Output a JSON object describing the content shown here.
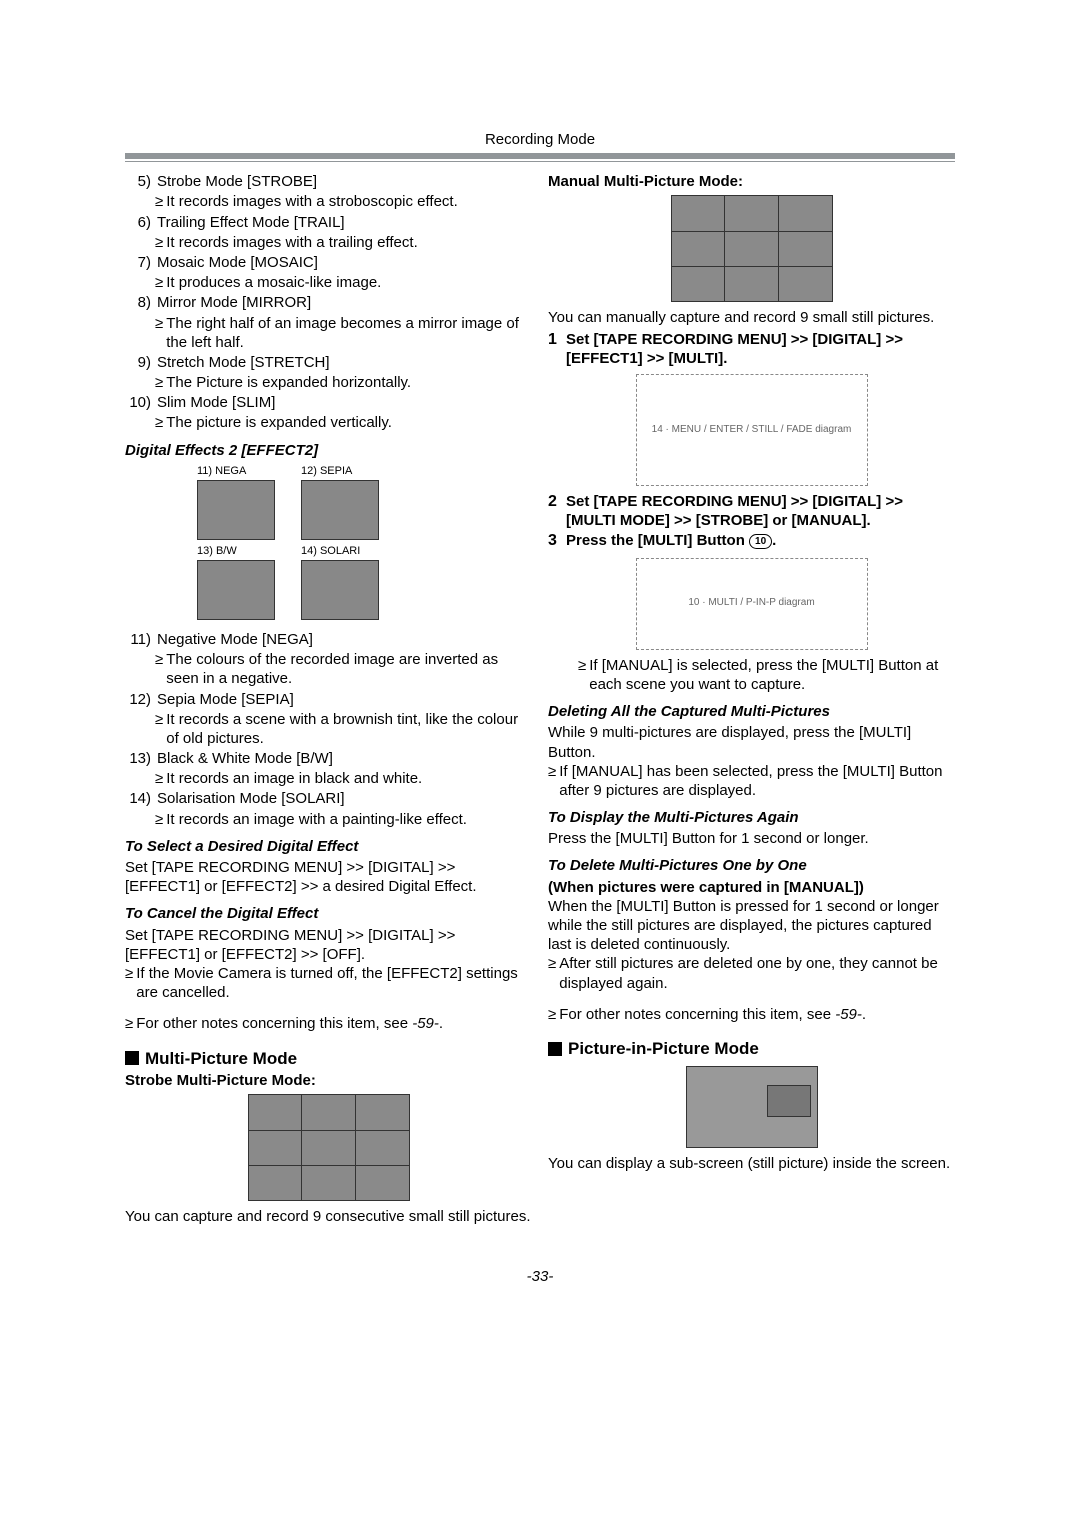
{
  "header": "Recording Mode",
  "left": {
    "effects1": [
      {
        "n": "5)",
        "title": "Strobe Mode [STROBE]",
        "desc": "It records images with a stroboscopic effect."
      },
      {
        "n": "6)",
        "title": "Trailing Effect Mode [TRAIL]",
        "desc": "It records images with a trailing effect."
      },
      {
        "n": "7)",
        "title": "Mosaic Mode [MOSAIC]",
        "desc": "It produces a mosaic-like image."
      },
      {
        "n": "8)",
        "title": "Mirror Mode [MIRROR]",
        "desc": "The right half of an image becomes a mirror image of the left half."
      },
      {
        "n": "9)",
        "title": "Stretch Mode [STRETCH]",
        "desc": "The Picture is expanded horizontally."
      },
      {
        "n": "10)",
        "title": "Slim Mode [SLIM]",
        "desc": "The picture is expanded vertically."
      }
    ],
    "effects2_heading": "Digital Effects 2 [EFFECT2]",
    "effects2_thumbs": [
      {
        "cap": "11) NEGA"
      },
      {
        "cap": "12) SEPIA"
      },
      {
        "cap": "13) B/W"
      },
      {
        "cap": "14) SOLARI"
      }
    ],
    "effects2": [
      {
        "n": "11)",
        "title": "Negative Mode [NEGA]",
        "desc": "The colours of the recorded image are inverted as seen in a negative."
      },
      {
        "n": "12)",
        "title": "Sepia Mode [SEPIA]",
        "desc": "It records a scene with a brownish tint, like the colour of old pictures."
      },
      {
        "n": "13)",
        "title": "Black & White Mode [B/W]",
        "desc": "It records an image in black and white."
      },
      {
        "n": "14)",
        "title": "Solarisation Mode [SOLARI]",
        "desc": "It records an image with a painting-like effect."
      }
    ],
    "select_heading": "To Select a Desired Digital Effect",
    "select_body": "Set [TAPE RECORDING MENU] >> [DIGITAL] >> [EFFECT1] or [EFFECT2] >> a desired Digital Effect.",
    "cancel_heading": "To Cancel the Digital Effect",
    "cancel_body": "Set [TAPE RECORDING MENU] >> [DIGITAL] >> [EFFECT1] or [EFFECT2] >> [OFF].",
    "cancel_bullet": "If the Movie Camera is turned off, the [EFFECT2] settings are cancelled.",
    "notes_ref_pre": "For other notes concerning this item, see ",
    "notes_ref_page": "-59-",
    "notes_ref_post": ".",
    "multi_heading": "Multi-Picture Mode",
    "strobe_multi_heading": "Strobe Multi-Picture Mode:",
    "strobe_multi_body": "You can capture and record 9 consecutive small still pictures."
  },
  "right": {
    "manual_heading": "Manual Multi-Picture Mode:",
    "manual_body": "You can manually capture and record 9 small still pictures.",
    "step1_n": "1",
    "step1_t": "Set [TAPE RECORDING MENU] >> [DIGITAL] >> [EFFECT1] >> [MULTI].",
    "step2_n": "2",
    "step2_t": "Set [TAPE RECORDING MENU] >> [DIGITAL] >> [MULTI MODE] >> [STROBE] or [MANUAL].",
    "step3_n": "3",
    "step3_pre": "Press the [MULTI] Button ",
    "step3_btn": "10",
    "step3_post": ".",
    "manual_bullet": "If [MANUAL] is selected, press the [MULTI] Button at each scene you want to capture.",
    "del_all_heading": "Deleting All the Captured Multi-Pictures",
    "del_all_body": "While 9 multi-pictures are displayed, press the [MULTI] Button.",
    "del_all_bullet": "If [MANUAL] has been selected, press the [MULTI] Button after 9 pictures are displayed.",
    "redisplay_heading": "To Display the Multi-Pictures Again",
    "redisplay_body": "Press the [MULTI] Button for 1 second or longer.",
    "del_one_heading": "To Delete Multi-Pictures One by One",
    "del_one_sub": "(When pictures were captured in [MANUAL])",
    "del_one_body": "When the [MULTI] Button is pressed for 1 second or longer while the still pictures are displayed, the pictures captured last is deleted continuously.",
    "del_one_bullet": "After still pictures are deleted one by one, they cannot be displayed again.",
    "notes_ref_pre": "For other notes concerning this item, see ",
    "notes_ref_page": "-59-",
    "notes_ref_post": ".",
    "pip_heading": "Picture-in-Picture Mode",
    "pip_body": "You can display a sub-screen (still picture) inside the screen."
  },
  "page_number": "-33-",
  "colors": {
    "divider": "#919699"
  }
}
